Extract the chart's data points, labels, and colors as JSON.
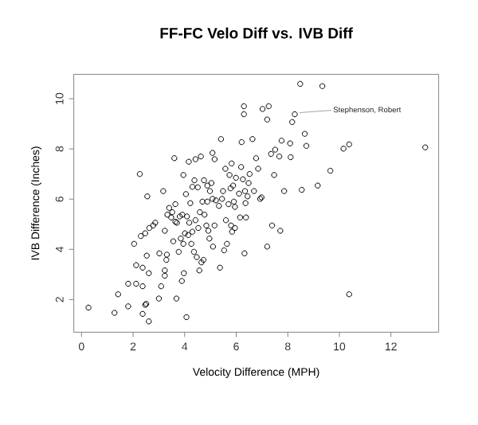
{
  "chart_data": {
    "type": "scatter",
    "title": "FF-FC Velo Diff vs. IVB Diff",
    "xlabel": "Velocity Difference (MPH)",
    "ylabel": "IVB Difference (Inches)",
    "xlim": [
      -0.3,
      13.85
    ],
    "ylim": [
      0.7,
      10.97
    ],
    "xticks": [
      0,
      2,
      4,
      6,
      8,
      10,
      12
    ],
    "yticks": [
      2,
      4,
      6,
      8,
      10
    ],
    "grid": false,
    "marker": "circle",
    "annotations": [
      {
        "text": "Stephenson, Robert",
        "x": 8.27,
        "y": 9.38
      }
    ],
    "series": [
      {
        "color": "#000000",
        "x": [
          0.27,
          1.28,
          1.42,
          1.81,
          1.81,
          2.04,
          2.12,
          2.12,
          2.26,
          2.37,
          2.37,
          2.3,
          2.37,
          2.47,
          2.51,
          2.47,
          2.55,
          2.53,
          2.61,
          2.61,
          2.63,
          2.78,
          2.86,
          3.0,
          3.02,
          3.09,
          3.17,
          3.23,
          3.23,
          3.23,
          3.29,
          3.31,
          3.33,
          3.4,
          3.48,
          3.52,
          3.56,
          3.6,
          3.64,
          3.64,
          3.68,
          3.7,
          3.77,
          3.81,
          3.85,
          3.89,
          3.91,
          3.95,
          3.95,
          3.97,
          4.01,
          4.05,
          4.07,
          4.09,
          4.14,
          4.16,
          4.18,
          4.22,
          4.26,
          4.3,
          4.3,
          4.36,
          4.38,
          4.42,
          4.42,
          4.47,
          4.51,
          4.53,
          4.57,
          4.59,
          4.63,
          4.65,
          4.69,
          4.73,
          4.75,
          4.77,
          4.84,
          4.88,
          4.88,
          4.92,
          4.96,
          4.98,
          5.04,
          5.08,
          5.08,
          5.1,
          5.16,
          5.16,
          5.21,
          5.33,
          5.37,
          5.41,
          5.45,
          5.49,
          5.53,
          5.58,
          5.6,
          5.64,
          5.7,
          5.74,
          5.78,
          5.8,
          5.82,
          5.84,
          5.88,
          5.91,
          5.95,
          5.95,
          5.99,
          6.11,
          6.15,
          6.19,
          6.21,
          6.26,
          6.3,
          6.3,
          6.32,
          6.34,
          6.36,
          6.38,
          6.44,
          6.48,
          6.52,
          6.63,
          6.69,
          6.77,
          6.85,
          6.93,
          6.98,
          7.02,
          7.2,
          7.2,
          7.26,
          7.35,
          7.39,
          7.47,
          7.51,
          7.67,
          7.71,
          7.76,
          7.86,
          8.09,
          8.11,
          8.17,
          8.27,
          8.48,
          8.54,
          8.66,
          8.72,
          9.16,
          9.34,
          9.65,
          10.16,
          10.38,
          10.38,
          13.33
        ],
        "values": [
          1.68,
          1.47,
          2.21,
          1.73,
          2.63,
          4.22,
          2.63,
          3.37,
          7.0,
          2.53,
          3.27,
          4.53,
          1.43,
          1.79,
          1.83,
          4.64,
          6.11,
          3.75,
          1.13,
          3.05,
          4.85,
          4.95,
          5.06,
          2.04,
          3.84,
          2.53,
          6.32,
          2.95,
          3.16,
          4.74,
          3.58,
          3.79,
          5.38,
          5.65,
          5.27,
          5.48,
          4.32,
          7.63,
          5.1,
          5.8,
          2.04,
          5.06,
          3.9,
          5.31,
          4.43,
          2.74,
          5.38,
          6.96,
          4.22,
          3.05,
          4.64,
          6.2,
          1.3,
          5.31,
          4.57,
          7.49,
          5.06,
          5.84,
          4.22,
          4.7,
          6.49,
          3.9,
          6.75,
          7.59,
          5.16,
          3.69,
          6.47,
          4.85,
          3.16,
          5.48,
          7.7,
          3.48,
          5.9,
          3.58,
          6.75,
          5.38,
          4.95,
          6.54,
          5.9,
          4.74,
          4.43,
          6.32,
          6.64,
          7.84,
          6.01,
          4.11,
          4.95,
          7.59,
          5.95,
          5.73,
          3.27,
          8.39,
          6.01,
          6.32,
          3.96,
          7.21,
          5.16,
          4.22,
          5.8,
          6.96,
          6.43,
          4.95,
          7.42,
          4.7,
          6.54,
          5.9,
          5.69,
          4.85,
          6.85,
          6.22,
          5.27,
          7.28,
          8.27,
          6.79,
          9.7,
          9.38,
          3.84,
          6.32,
          5.84,
          5.27,
          6.11,
          6.64,
          7.0,
          8.39,
          6.32,
          7.63,
          7.21,
          6.01,
          6.07,
          9.59,
          4.11,
          9.17,
          9.7,
          7.8,
          4.95,
          6.96,
          7.97,
          7.7,
          4.74,
          8.33,
          6.32,
          8.22,
          7.67,
          9.07,
          9.38,
          10.59,
          6.37,
          8.6,
          8.12,
          6.54,
          10.5,
          7.13,
          8.01,
          8.18,
          2.21,
          8.06
        ]
      }
    ]
  }
}
